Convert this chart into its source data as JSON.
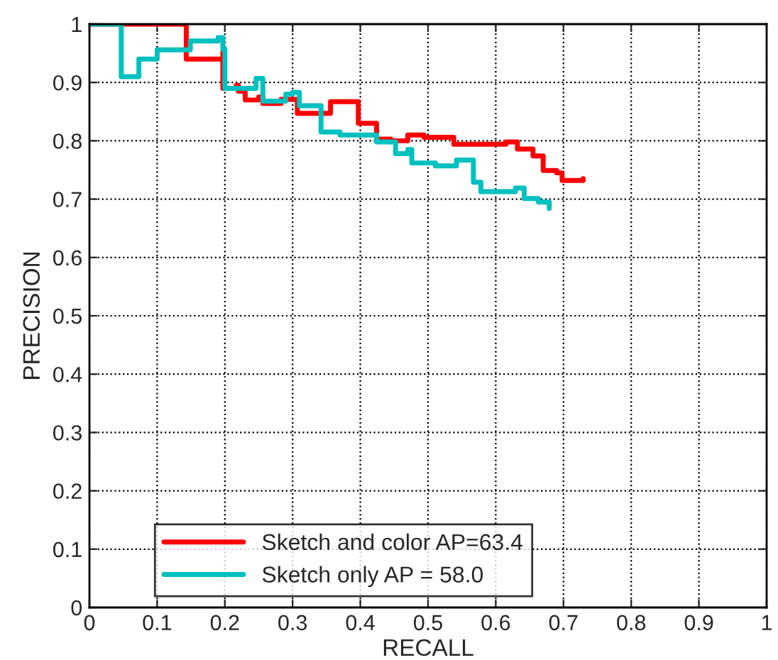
{
  "chart_data": {
    "type": "step",
    "xlabel": "RECALL",
    "ylabel": "PRECISION",
    "xlim": [
      0,
      1
    ],
    "ylim": [
      0,
      1
    ],
    "xticks": [
      0,
      0.1,
      0.2,
      0.3,
      0.4,
      0.5,
      0.6,
      0.7,
      0.8,
      0.9,
      1
    ],
    "yticks": [
      0,
      0.1,
      0.2,
      0.3,
      0.4,
      0.5,
      0.6,
      0.7,
      0.8,
      0.9,
      1
    ],
    "grid": true,
    "legend": "bottom left",
    "line_style": "solid",
    "series": [
      {
        "name": "Sketch and color AP=63.4",
        "color": "#ff0000",
        "x": [
          0,
          0.143,
          0.143,
          0.197,
          0.197,
          0.217,
          0.22,
          0.23,
          0.25,
          0.256,
          0.283,
          0.307,
          0.356,
          0.397,
          0.424,
          0.445,
          0.47,
          0.494,
          0.538,
          0.615,
          0.632,
          0.655,
          0.67,
          0.69,
          0.698,
          0.729
        ],
        "values": [
          1,
          1,
          0.94,
          0.952,
          0.89,
          0.895,
          0.885,
          0.87,
          0.875,
          0.864,
          0.871,
          0.847,
          0.867,
          0.83,
          0.803,
          0.8,
          0.81,
          0.806,
          0.794,
          0.798,
          0.786,
          0.774,
          0.749,
          0.745,
          0.732,
          0.735
        ]
      },
      {
        "name": "Sketch only AP = 58.0",
        "color": "#00c0c0",
        "x": [
          0,
          0.047,
          0.047,
          0.073,
          0.1,
          0.149,
          0.19,
          0.197,
          0.2,
          0.246,
          0.256,
          0.29,
          0.3,
          0.31,
          0.342,
          0.37,
          0.424,
          0.452,
          0.47,
          0.476,
          0.511,
          0.542,
          0.567,
          0.578,
          0.629,
          0.642,
          0.663,
          0.679
        ],
        "values": [
          1,
          1,
          0.91,
          0.94,
          0.956,
          0.971,
          0.977,
          0.957,
          0.89,
          0.907,
          0.868,
          0.88,
          0.883,
          0.86,
          0.815,
          0.81,
          0.798,
          0.778,
          0.785,
          0.762,
          0.757,
          0.767,
          0.729,
          0.713,
          0.719,
          0.701,
          0.695,
          0.684
        ]
      }
    ]
  }
}
